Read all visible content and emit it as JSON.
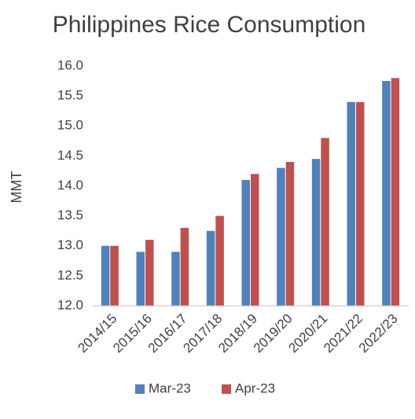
{
  "chart_data": {
    "type": "bar",
    "title": "Philippines Rice Consumption",
    "y_label": "MMT",
    "categories": [
      "2014/15",
      "2015/16",
      "2016/17",
      "2017/18",
      "2018/19",
      "2019/20",
      "2020/21",
      "2021/22",
      "2022/23"
    ],
    "series": [
      {
        "name": "Mar-23",
        "color": "#4f81bd",
        "values": [
          13.0,
          12.9,
          12.9,
          13.25,
          14.1,
          14.3,
          14.45,
          15.4,
          15.75
        ]
      },
      {
        "name": "Apr-23",
        "color": "#c0504d",
        "values": [
          13.0,
          13.1,
          13.3,
          13.5,
          14.2,
          14.4,
          14.8,
          15.4,
          15.8
        ]
      }
    ],
    "ylim": [
      12,
      16
    ],
    "yticks": [
      {
        "value": 12,
        "label": "12.0"
      },
      12.5,
      {
        "value": 13,
        "label": "13.0"
      },
      13.5,
      {
        "value": 14,
        "label": "14.0"
      },
      14.5,
      {
        "value": 15,
        "label": "15.0"
      },
      15.5,
      {
        "value": 16,
        "label": "16.0"
      }
    ],
    "grid": false,
    "legend": "bottom"
  }
}
